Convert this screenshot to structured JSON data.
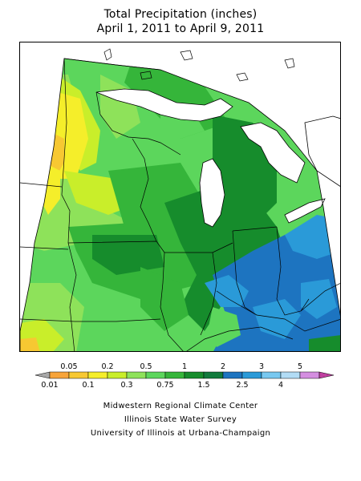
{
  "title_line1": "Total Precipitation (inches)",
  "title_line2": "April 1, 2011 to April 9, 2011",
  "legend": {
    "top_labels": [
      "0.05",
      "0.2",
      "0.5",
      "1",
      "2",
      "3",
      "5"
    ],
    "bottom_labels": [
      "0.01",
      "0.1",
      "0.3",
      "0.75",
      "1.5",
      "2.5",
      "4"
    ],
    "colors": [
      "#a8a8a8",
      "#f7a43a",
      "#f7c832",
      "#f5ee2a",
      "#c9ee2a",
      "#8ee25a",
      "#5cd65c",
      "#35b53a",
      "#168c2c",
      "#117a3c",
      "#1d74c0",
      "#2a9ad8",
      "#78c8f0",
      "#b2dcf5",
      "#d48ee0",
      "#c040a0"
    ]
  },
  "credits": {
    "line1": "Midwestern Regional Climate Center",
    "line2": "Illinois State Water Survey",
    "line3": "University of Illinois at Urbana-Champaign"
  }
}
